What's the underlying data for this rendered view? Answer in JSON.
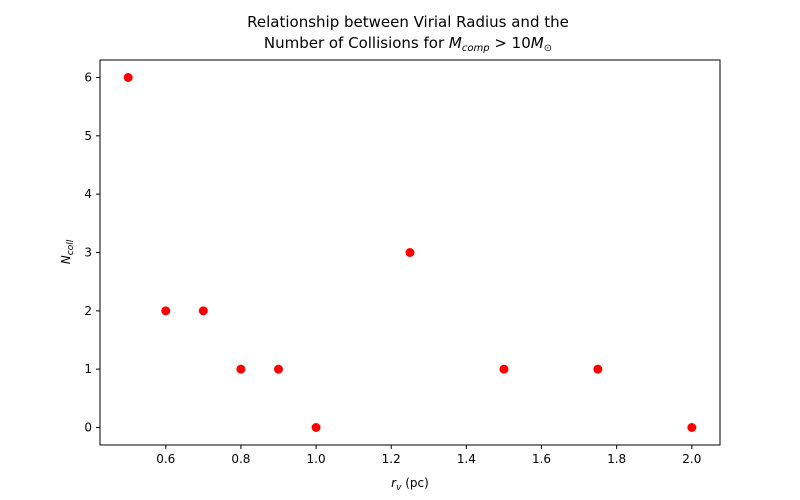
{
  "chart_data": {
    "type": "scatter",
    "title_line1": "Relationship between Virial Radius and the",
    "title_line2_prefix": "Number of Collisions for ",
    "title_math_main": "M",
    "title_math_sub": "comp",
    "title_math_mid": " > 10",
    "title_math_sun": "M",
    "title_math_sun_sub": "⊙",
    "xlabel_main": "r",
    "xlabel_sub": "v",
    "xlabel_unit": " (pc)",
    "ylabel_main": "N",
    "ylabel_sub": "coll",
    "xlim": [
      0.425,
      2.075
    ],
    "ylim": [
      -0.3,
      6.3
    ],
    "xticks": [
      0.6,
      0.8,
      1.0,
      1.2,
      1.4,
      1.6,
      1.8,
      2.0
    ],
    "xtick_labels": [
      "0.6",
      "0.8",
      "1.0",
      "1.2",
      "1.4",
      "1.6",
      "1.8",
      "2.0"
    ],
    "yticks": [
      0,
      1,
      2,
      3,
      4,
      5,
      6
    ],
    "ytick_labels": [
      "0",
      "1",
      "2",
      "3",
      "4",
      "5",
      "6"
    ],
    "marker_color": "#ff0000",
    "grid": false,
    "x": [
      0.5,
      0.6,
      0.7,
      0.8,
      0.9,
      1.0,
      1.25,
      1.5,
      1.75,
      2.0
    ],
    "y": [
      6,
      2,
      2,
      1,
      1,
      0,
      3,
      1,
      1,
      0
    ]
  }
}
